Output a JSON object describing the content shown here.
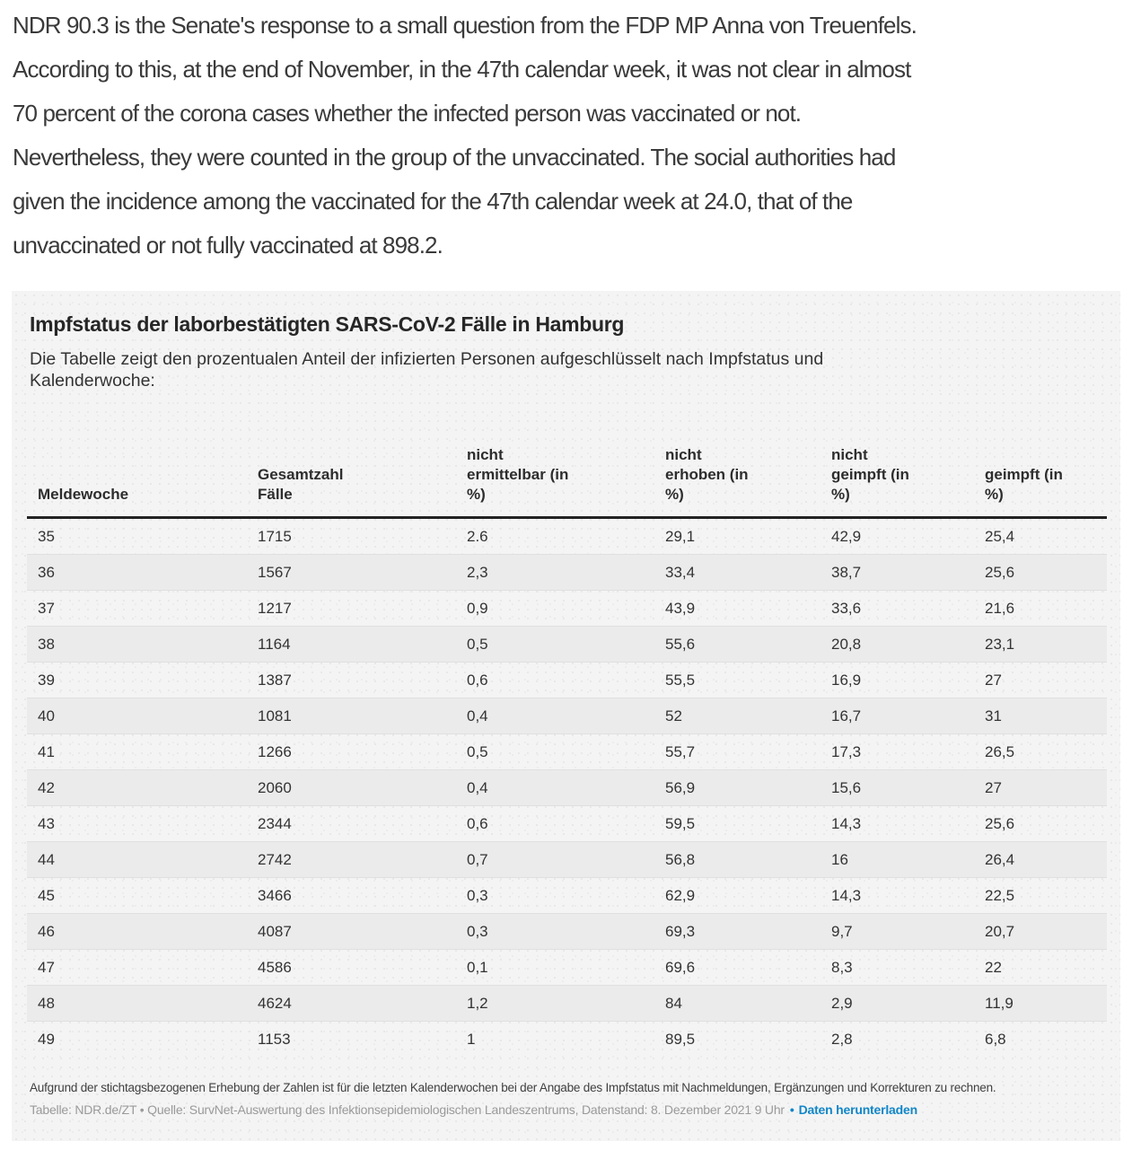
{
  "article": {
    "paragraph": "NDR 90.3 is the Senate's response to a small question from the FDP MP Anna von Treuenfels.\nAccording to this, at the end of November, in the 47th calendar week, it was not clear in almost\n70 percent of the corona cases whether the infected person was vaccinated or not.\nNevertheless, they were counted in the group of the unvaccinated. The social authorities had\ngiven the incidence among the vaccinated for the 47th calendar week at 24.0, that of the\nunvaccinated or not fully vaccinated at 898.2."
  },
  "widget": {
    "title": "Impfstatus der laborbestätigten SARS-CoV-2 Fälle in Hamburg",
    "subtitle": "Die Tabelle zeigt den prozentualen Anteil der infizierten Personen aufgeschlüsselt nach Impfstatus und\nKalenderwoche:",
    "columns": [
      "Meldewoche",
      "Gesamtzahl\nFälle",
      "nicht\nermittelbar (in\n%)",
      "nicht\nerhoben (in\n%)",
      "nicht\ngeimpft (in\n%)",
      "geimpft (in\n%)"
    ],
    "rows": [
      [
        "35",
        "1715",
        "2.6",
        "29,1",
        "42,9",
        "25,4"
      ],
      [
        "36",
        "1567",
        "2,3",
        "33,4",
        "38,7",
        "25,6"
      ],
      [
        "37",
        "1217",
        "0,9",
        "43,9",
        "33,6",
        "21,6"
      ],
      [
        "38",
        "1164",
        "0,5",
        "55,6",
        "20,8",
        "23,1"
      ],
      [
        "39",
        "1387",
        "0,6",
        "55,5",
        "16,9",
        "27"
      ],
      [
        "40",
        "1081",
        "0,4",
        "52",
        "16,7",
        "31"
      ],
      [
        "41",
        "1266",
        "0,5",
        "55,7",
        "17,3",
        "26,5"
      ],
      [
        "42",
        "2060",
        "0,4",
        "56,9",
        "15,6",
        "27"
      ],
      [
        "43",
        "2344",
        "0,6",
        "59,5",
        "14,3",
        "25,6"
      ],
      [
        "44",
        "2742",
        "0,7",
        "56,8",
        "16",
        "26,4"
      ],
      [
        "45",
        "3466",
        "0,3",
        "62,9",
        "14,3",
        "22,5"
      ],
      [
        "46",
        "4087",
        "0,3",
        "69,3",
        "9,7",
        "20,7"
      ],
      [
        "47",
        "4586",
        "0,1",
        "69,6",
        "8,3",
        "22"
      ],
      [
        "48",
        "4624",
        "1,2",
        "84",
        "2,9",
        "11,9"
      ],
      [
        "49",
        "1153",
        "1",
        "89,5",
        "2,8",
        "6,8"
      ]
    ],
    "footnote": "Aufgrund der stichtagsbezogenen Erhebung der Zahlen ist für die letzten Kalenderwochen bei der Angabe des Impfstatus mit Nachmeldungen, Ergänzungen und Korrekturen zu rechnen.",
    "source": {
      "text": "Tabelle: NDR.de/ZT • Quelle: SurvNet-Auswertung des Infektionsepidemiologischen Landeszentrums, Datenstand: 8. Dezember 2021 9 Uhr",
      "bullet": "•",
      "link_label": "Daten herunterladen"
    }
  },
  "colors": {
    "link_blue": "#1186c8",
    "panel_bg": "#f4f4f4",
    "row_alt_bg": "#ebebeb",
    "header_rule": "#222222"
  }
}
